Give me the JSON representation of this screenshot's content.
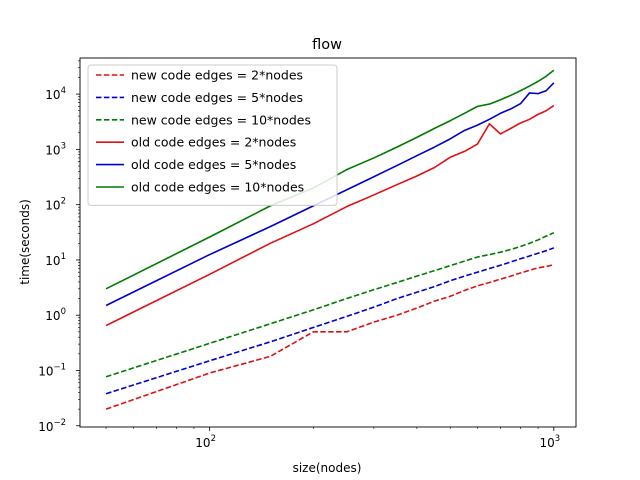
{
  "chart_data": {
    "type": "line",
    "title": "flow",
    "xlabel": "size(nodes)",
    "ylabel": "time(seconds)",
    "xscale": "log",
    "yscale": "log",
    "xlim": [
      42,
      1160
    ],
    "ylim": [
      0.0095,
      45000
    ],
    "x_ticks": [
      {
        "base": "10",
        "exp": "2"
      },
      {
        "base": "10",
        "exp": "3"
      }
    ],
    "y_ticks": [
      {
        "base": "10",
        "exp": "−2"
      },
      {
        "base": "10",
        "exp": "−1"
      },
      {
        "base": "10",
        "exp": "0"
      },
      {
        "base": "10",
        "exp": "1"
      },
      {
        "base": "10",
        "exp": "2"
      },
      {
        "base": "10",
        "exp": "3"
      },
      {
        "base": "10",
        "exp": "4"
      }
    ],
    "legend_position": "upper-left",
    "x": [
      50,
      100,
      150,
      200,
      250,
      300,
      350,
      400,
      450,
      500,
      550,
      600,
      650,
      700,
      750,
      800,
      850,
      900,
      950,
      1000
    ],
    "series": [
      {
        "name": "new code edges = 2*nodes",
        "color": "#dd1111",
        "dash": "dashed",
        "values": [
          0.02,
          0.09,
          0.18,
          0.5,
          0.5,
          0.75,
          1.0,
          1.35,
          1.8,
          2.2,
          2.8,
          3.4,
          3.9,
          4.5,
          5.1,
          5.8,
          6.5,
          7.2,
          7.6,
          8.2
        ]
      },
      {
        "name": "new code edges = 5*nodes",
        "color": "#0000cc",
        "dash": "dashed",
        "values": [
          0.038,
          0.15,
          0.33,
          0.6,
          0.95,
          1.4,
          2.0,
          2.6,
          3.3,
          4.2,
          5.1,
          6.0,
          7.0,
          8.0,
          9.2,
          10.5,
          11.8,
          13.2,
          14.7,
          16.5
        ]
      },
      {
        "name": "new code edges = 10*nodes",
        "color": "#007a00",
        "dash": "dashed",
        "values": [
          0.077,
          0.31,
          0.7,
          1.25,
          2.0,
          2.9,
          3.9,
          5.1,
          6.4,
          7.9,
          9.5,
          11.3,
          12.5,
          13.8,
          15.5,
          17.5,
          20.0,
          23.0,
          27.0,
          31.0
        ]
      },
      {
        "name": "old code edges = 2*nodes",
        "color": "#dd1111",
        "dash": "solid",
        "values": [
          0.65,
          5.5,
          20,
          45,
          92,
          150,
          230,
          330,
          470,
          720,
          920,
          1250,
          2900,
          1900,
          2400,
          3000,
          3500,
          4300,
          5000,
          6200
        ]
      },
      {
        "name": "old code edges = 5*nodes",
        "color": "#0000cc",
        "dash": "solid",
        "values": [
          1.5,
          12.5,
          40,
          95,
          185,
          320,
          510,
          770,
          1100,
          1550,
          2200,
          2750,
          3500,
          4500,
          5400,
          6700,
          10500,
          10200,
          11500,
          16000
        ]
      },
      {
        "name": "old code edges = 10*nodes",
        "color": "#007a00",
        "dash": "solid",
        "values": [
          3.0,
          26,
          95,
          200,
          430,
          700,
          1100,
          1650,
          2400,
          3300,
          4500,
          6000,
          6600,
          7900,
          9500,
          11500,
          14000,
          17000,
          21000,
          27000
        ]
      }
    ]
  }
}
